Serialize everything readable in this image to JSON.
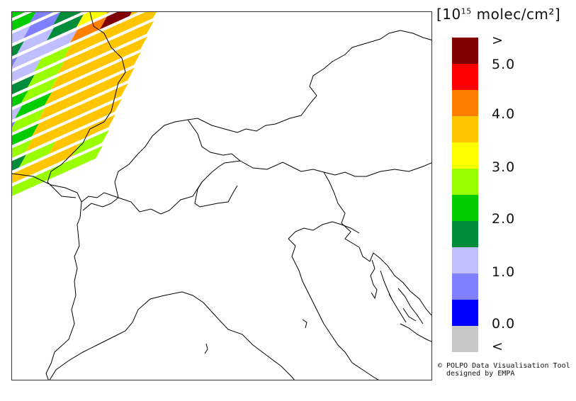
{
  "colorbar": {
    "unit_base": "[10",
    "unit_exp": "15",
    "unit_tail": " molec/cm²]",
    "bins": [
      {
        "color": "#7f0000"
      },
      {
        "color": "#ff0000"
      },
      {
        "color": "#ff8000"
      },
      {
        "color": "#ffc600"
      },
      {
        "color": "#ffff00"
      },
      {
        "color": "#99ff00"
      },
      {
        "color": "#00cc00"
      },
      {
        "color": "#008c3a"
      },
      {
        "color": "#bfbfff"
      },
      {
        "color": "#8080ff"
      },
      {
        "color": "#0000ff"
      },
      {
        "color": "#c8c8c8"
      }
    ],
    "labels": [
      ">",
      "5.0",
      "4.0",
      "3.0",
      "2.0",
      "1.0",
      "0.0",
      "<"
    ]
  },
  "credit": {
    "line1": "© POLPO Data Visualisation Tool",
    "line2": "  designed by EMPA"
  }
}
